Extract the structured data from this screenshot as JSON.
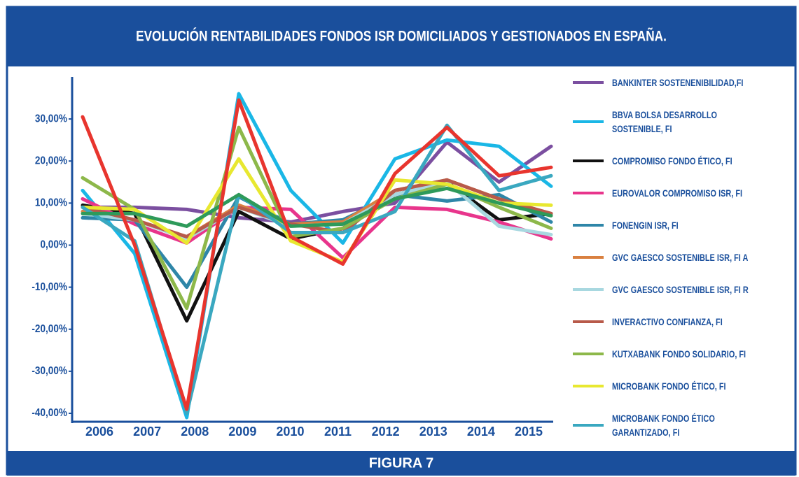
{
  "chart_data": {
    "type": "line",
    "title": "EVOLUCIÓN RENTABILIDADES FONDOS ISR DOMICILIADOS Y GESTIONADOS EN ESPAÑA.",
    "caption": "FIGURA 7",
    "categories": [
      "2006",
      "2007",
      "2008",
      "2009",
      "2010",
      "2011",
      "2012",
      "2013",
      "2014",
      "2015"
    ],
    "ylim": [
      -42,
      40
    ],
    "yticks": [
      {
        "value": -40,
        "label": "-40,00%"
      },
      {
        "value": -30,
        "label": "-30,00%"
      },
      {
        "value": -20,
        "label": "-20,00%"
      },
      {
        "value": -10,
        "label": "-10,00%"
      },
      {
        "value": 0,
        "label": "0,00%"
      },
      {
        "value": 10,
        "label": "10,00%"
      },
      {
        "value": 20,
        "label": "20,00%"
      },
      {
        "value": 30,
        "label": "30,00%"
      }
    ],
    "series": [
      {
        "name": "BANKINTER SOSTENENIBILIDAD,FI",
        "color": "#7b4fa0",
        "values": [
          9,
          9,
          8.5,
          6.5,
          5.5,
          8,
          10,
          24.5,
          15,
          23.5
        ]
      },
      {
        "name": "BBVA BOLSA DESARROLLO SOSTENIBLE, FI",
        "color": "#1ab7e6",
        "values": [
          13,
          -2,
          -41,
          36,
          13,
          0.5,
          20.5,
          25,
          23.5,
          14
        ]
      },
      {
        "name": "COMPROMISO FONDO ÉTICO, FI",
        "color": "#111111",
        "values": [
          9.5,
          7.5,
          -18,
          8,
          1.5,
          4,
          12,
          15,
          6,
          7.5
        ]
      },
      {
        "name": "EUROVALOR COMPROMISO ISR, FI",
        "color": "#e8358c",
        "values": [
          11,
          5,
          0.5,
          9,
          8.5,
          -3,
          9,
          8.5,
          5.5,
          1.5
        ]
      },
      {
        "name": "FONENGIN ISR, FI",
        "color": "#2e86a8",
        "values": [
          6.5,
          6,
          -10,
          11.5,
          5,
          6,
          12,
          10.5,
          12,
          5.5
        ]
      },
      {
        "name": "GVC GAESCO SOSTENIBLE ISR, FI A",
        "color": "#d98040",
        "values": [
          8,
          6,
          2,
          9.5,
          5,
          5.5,
          13,
          15.5,
          11,
          7.5
        ]
      },
      {
        "name": "GVC GAESCO SOSTENIBLE ISR, FI R",
        "color": "#a8d8e0",
        "values": [
          7.5,
          6,
          1.5,
          9,
          4.5,
          5,
          12,
          15,
          4.5,
          2.5
        ]
      },
      {
        "name": "INVERACTIVO CONFIANZA, FI",
        "color": "#b85a4a",
        "values": [
          9,
          6,
          2,
          9,
          5,
          3,
          13,
          15.5,
          11,
          7.5
        ]
      },
      {
        "name": "KUTXABANK FONDO SOLIDARIO, FI",
        "color": "#8db84a",
        "values": [
          16,
          8.5,
          -15,
          28,
          2,
          4,
          11,
          14.5,
          9,
          4
        ]
      },
      {
        "name": "MICROBANK FONDO ÉTICO, FI",
        "color": "#e8e830",
        "values": [
          9,
          8.5,
          0.5,
          20.5,
          1,
          -4,
          15.5,
          14.5,
          10,
          9.5
        ]
      },
      {
        "name": "MICROBANK FONDO ÉTICO GARANTIZADO, FI",
        "color": "#3aa8c0",
        "values": [
          9,
          1,
          -40,
          12,
          3,
          3,
          8,
          28.5,
          13,
          16.5
        ]
      },
      {
        "color": "#2e9a5a",
        "values": [
          7.5,
          7.5,
          4.5,
          12,
          4.5,
          5,
          11,
          13.5,
          10,
          7
        ]
      },
      {
        "color": "#e8352e",
        "values": [
          30.5,
          0,
          -39,
          34.5,
          2,
          -4.5,
          17,
          28,
          16.5,
          18.5
        ]
      }
    ]
  }
}
